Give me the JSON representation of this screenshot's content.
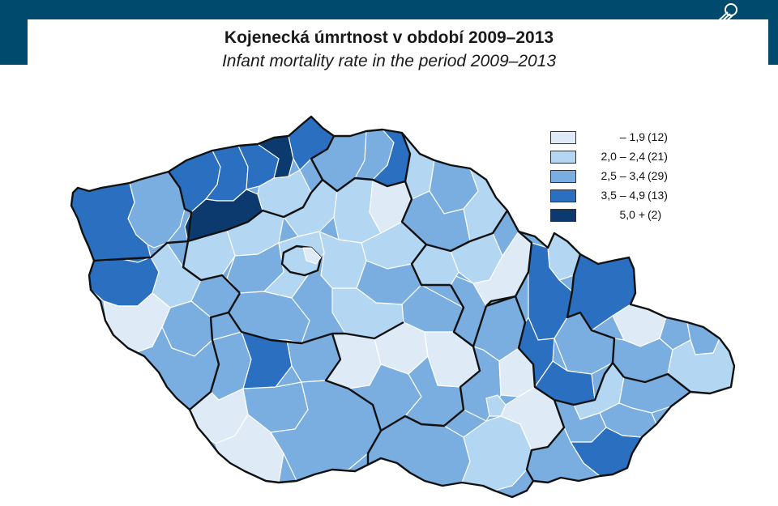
{
  "titles": {
    "main": "Kojenecká úmrtnost v období 2009–2013",
    "sub": "Infant mortality rate in the period 2009–2013"
  },
  "icons": {
    "logo": "czso-logo-icon"
  },
  "colors": {
    "header_band": "#004a6e",
    "border_district": "#ffffff",
    "border_region": "#111111"
  },
  "legend": {
    "items": [
      {
        "range": "– 1,9",
        "count": "(12)",
        "color": "#deebf7"
      },
      {
        "range": "2,0 – 2,4",
        "count": "(21)",
        "color": "#b3d6f2"
      },
      {
        "range": "2,5 – 3,4",
        "count": "(29)",
        "color": "#7aaee0"
      },
      {
        "range": "3,5 – 4,9",
        "count": "(13)",
        "color": "#2a6fc0"
      },
      {
        "range": "5,0 +",
        "count": "(2)",
        "color": "#0d3a6e"
      }
    ]
  }
}
